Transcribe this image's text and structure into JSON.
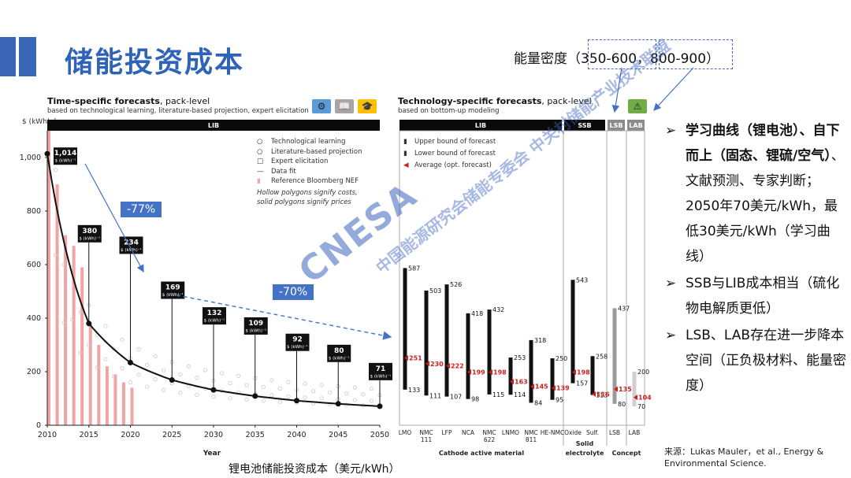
{
  "header": {
    "title": "储能投资成本",
    "energy_density_label": "能量密度",
    "range1": "350-600",
    "range2": "800-900"
  },
  "left_figure": {
    "title_bold": "Time-specific forecasts",
    "title_rest": ", pack-level",
    "subtitle": "based on technological learning, literature-based projection, expert elicitation",
    "y_unit": "$ (kWh)⁻¹",
    "band_label": "LIB",
    "xlabel": "Year",
    "legend": [
      "Technological learning",
      "Literature-based projection",
      "Expert elicitation",
      "Data fit",
      "Reference Bloomberg NEF"
    ],
    "legend_note1": "Hollow polygons signify costs,",
    "legend_note2": "solid polygons signify prices",
    "reduction1": "-77%",
    "reduction2": "-70%",
    "caption": "锂电池储能投资成本（美元/kWh）"
  },
  "right_figure": {
    "title_bold": "Technology-specific forecasts",
    "title_rest": ", pack-level",
    "subtitle": "based on bottom-up modeling",
    "bands": [
      "LIB",
      "SSB",
      "LSB",
      "LAB"
    ],
    "legend": [
      "Upper bound of forecast",
      "Lower bound of forecast",
      "Average (opt. forecast)"
    ],
    "group_labels": [
      "Cathode active material",
      "Solid electrolyte",
      "Concept"
    ]
  },
  "chart_data": [
    {
      "type": "line",
      "title": "Time-specific forecasts, pack-level",
      "xlabel": "Year",
      "ylabel": "$ (kWh)⁻¹",
      "xlim": [
        2010,
        2050
      ],
      "ylim": [
        0,
        1100
      ],
      "x_ticks": [
        2010,
        2015,
        2020,
        2025,
        2030,
        2035,
        2040,
        2045,
        2050
      ],
      "y_ticks": [
        0,
        200,
        400,
        600,
        800,
        1000
      ],
      "series": [
        {
          "name": "Data fit",
          "x": [
            2010,
            2015,
            2020,
            2025,
            2030,
            2035,
            2040,
            2045,
            2050
          ],
          "values": [
            1014,
            380,
            234,
            169,
            132,
            109,
            92,
            80,
            71
          ]
        }
      ],
      "annotations": [
        {
          "x": 2010,
          "value": "1,014",
          "unit": "$ (kWh)⁻¹"
        },
        {
          "x": 2015,
          "value": "380",
          "unit": "$ (kWh)⁻¹"
        },
        {
          "x": 2020,
          "value": "234",
          "unit": "$ (kWh)⁻¹"
        },
        {
          "x": 2025,
          "value": "169",
          "unit": "$ (kWh)⁻¹"
        },
        {
          "x": 2030,
          "value": "132",
          "unit": "$ (kWh)⁻¹"
        },
        {
          "x": 2035,
          "value": "109",
          "unit": "$ (kWh)⁻¹"
        },
        {
          "x": 2040,
          "value": "92",
          "unit": "$ (kWh)⁻¹"
        },
        {
          "x": 2045,
          "value": "80",
          "unit": "$ (kWh)⁻¹"
        },
        {
          "x": 2050,
          "value": "71",
          "unit": "$ (kWh)⁻¹"
        }
      ],
      "bnef_bars": {
        "x": [
          2010,
          2011,
          2012,
          2013,
          2014,
          2015,
          2016,
          2017,
          2018,
          2019,
          2020
        ],
        "values": [
          1100,
          900,
          710,
          670,
          590,
          380,
          300,
          220,
          190,
          160,
          140
        ]
      }
    },
    {
      "type": "bar",
      "title": "Technology-specific forecasts, pack-level",
      "ylim": [
        0,
        1100
      ],
      "categories": [
        "LMO",
        "NMC 111",
        "LFP",
        "NCA",
        "NMC 622",
        "LNMO",
        "NMC 811",
        "HE-NMC",
        "Oxide",
        "Sulf.",
        "LSB",
        "LAB"
      ],
      "upper": [
        587,
        503,
        526,
        418,
        432,
        253,
        318,
        250,
        543,
        258,
        437,
        200
      ],
      "lower": [
        133,
        111,
        107,
        98,
        115,
        114,
        84,
        95,
        157,
        113,
        80,
        70
      ],
      "average": [
        251,
        230,
        222,
        199,
        198,
        163,
        145,
        139,
        198,
        116,
        135,
        104
      ],
      "colors": {
        "bar": "#111111",
        "lsb_bar": "#9a9a9a",
        "lab_bar": "#d0d0d0",
        "average": "#cc1f1f"
      }
    }
  ],
  "bullets": [
    {
      "bold": "学习曲线（锂电池）、自下而上（固态、锂硫/空气）",
      "text": "、文献预测、专家判断；2050年70美元/kWh，最低30美元/kWh（学习曲线）"
    },
    {
      "bold": "",
      "text": "SSB与LIB成本相当（硫化物电解质更低）"
    },
    {
      "bold": "",
      "text": "LSB、LAB存在进一步降本空间（正负极材料、能量密度）"
    }
  ],
  "source": "来源：Lukas Mauler，et al., Energy & Environmental Science.",
  "watermark_cn": "中国能源研究会储能专委会 中关村储能产业技术联盟",
  "watermark_en": "CNESA China Energy Storage Alliance",
  "colors": {
    "title": "#2f63b8",
    "accent": "#4472c4",
    "bnef": "#f2a3a3",
    "average": "#cc1f1f"
  }
}
